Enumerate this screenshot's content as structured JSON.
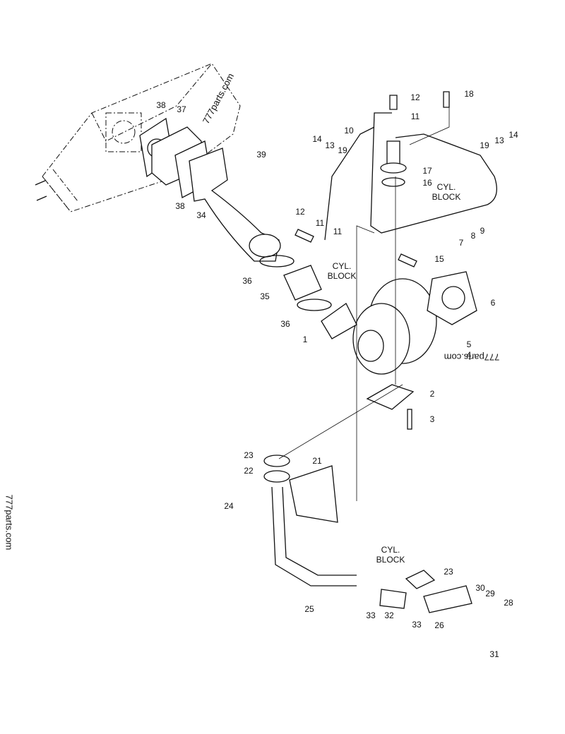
{
  "callouts": [
    "38",
    "37",
    "39",
    "38",
    "34",
    "12",
    "11",
    "10",
    "14",
    "13",
    "19",
    "17",
    "16",
    "18",
    "19",
    "13",
    "14",
    "12",
    "11",
    "11",
    "15",
    "8",
    "9",
    "7",
    "36",
    "35",
    "6",
    "36",
    "1",
    "5",
    "4",
    "2",
    "3",
    "23",
    "22",
    "21",
    "24",
    "25",
    "23",
    "30",
    "29",
    "28",
    "33",
    "32",
    "33",
    "26",
    "31"
  ],
  "notes": [
    [
      "CYL.",
      "BLOCK"
    ],
    [
      "CYL.",
      "BLOCK"
    ],
    [
      "CYL.",
      "BLOCK"
    ]
  ],
  "watermarks": [
    "777parts.com",
    "777parts.com",
    "777parts.com"
  ]
}
